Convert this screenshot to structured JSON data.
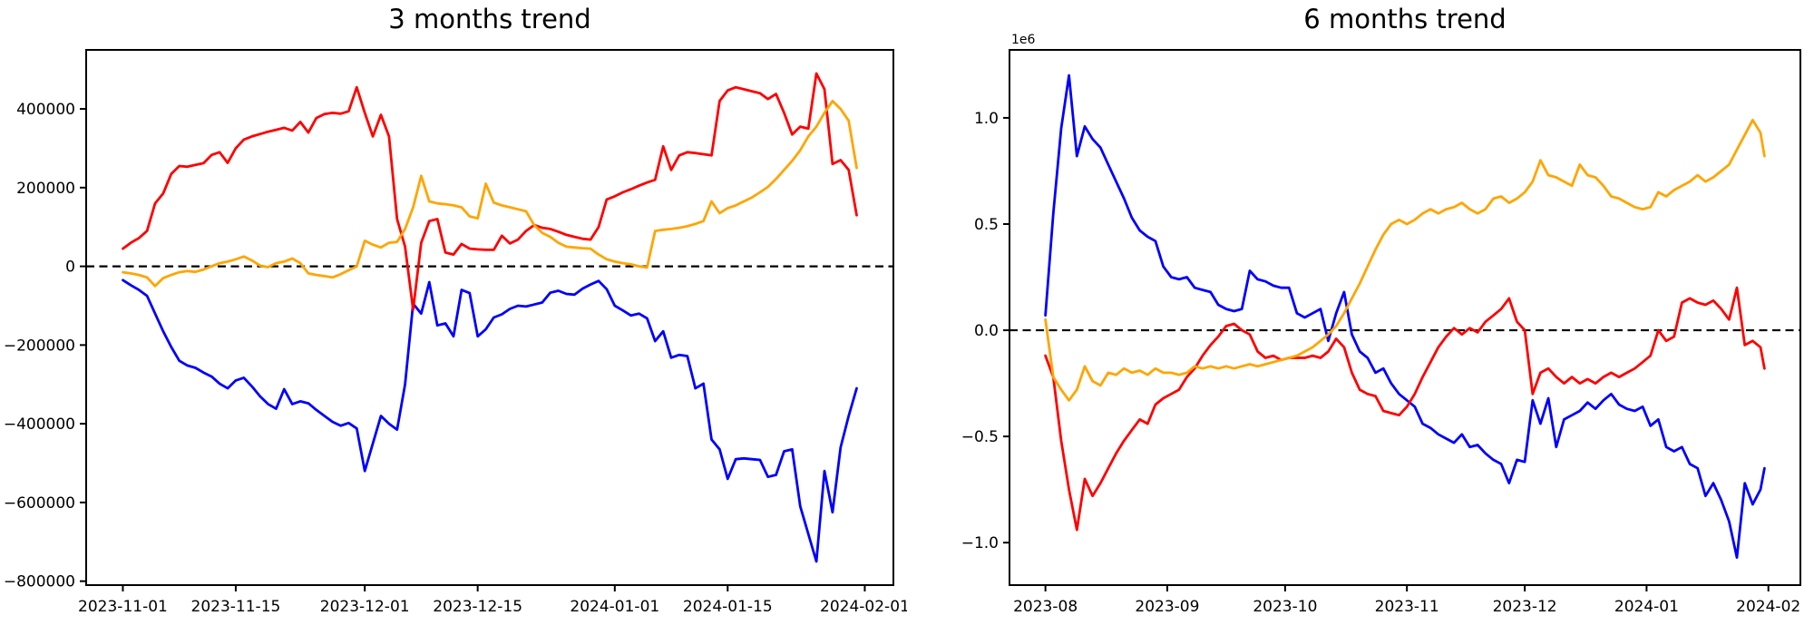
{
  "figure": {
    "background": "#ffffff",
    "zero_line_color": "#000000"
  },
  "chart_data": [
    {
      "type": "line",
      "title": "3 months trend",
      "xlabel": "",
      "ylabel": "",
      "grid": false,
      "legend": "none",
      "zero_line": true,
      "ylim": [
        -810000,
        550000
      ],
      "y_ticks": [
        {
          "value": 400000,
          "label": "400000"
        },
        {
          "value": 200000,
          "label": "200000"
        },
        {
          "value": 0,
          "label": "0"
        },
        {
          "value": -200000,
          "label": "−200000"
        },
        {
          "value": -400000,
          "label": "−400000"
        },
        {
          "value": -600000,
          "label": "−600000"
        },
        {
          "value": -800000,
          "label": "−800000"
        }
      ],
      "x_ticks": [
        {
          "date": "2023-11-01",
          "label": "2023-11-01"
        },
        {
          "date": "2023-11-15",
          "label": "2023-11-15"
        },
        {
          "date": "2023-12-01",
          "label": "2023-12-01"
        },
        {
          "date": "2023-12-15",
          "label": "2023-12-15"
        },
        {
          "date": "2024-01-01",
          "label": "2024-01-01"
        },
        {
          "date": "2024-01-15",
          "label": "2024-01-15"
        },
        {
          "date": "2024-02-01",
          "label": "2024-02-01"
        }
      ],
      "x_dates": [
        "2023-11-01",
        "2023-11-02",
        "2023-11-03",
        "2023-11-04",
        "2023-11-05",
        "2023-11-06",
        "2023-11-07",
        "2023-11-08",
        "2023-11-09",
        "2023-11-10",
        "2023-11-11",
        "2023-11-12",
        "2023-11-13",
        "2023-11-14",
        "2023-11-15",
        "2023-11-16",
        "2023-11-17",
        "2023-11-18",
        "2023-11-19",
        "2023-11-20",
        "2023-11-21",
        "2023-11-22",
        "2023-11-23",
        "2023-11-24",
        "2023-11-25",
        "2023-11-26",
        "2023-11-27",
        "2023-11-28",
        "2023-11-29",
        "2023-11-30",
        "2023-12-01",
        "2023-12-02",
        "2023-12-03",
        "2023-12-04",
        "2023-12-05",
        "2023-12-06",
        "2023-12-07",
        "2023-12-08",
        "2023-12-09",
        "2023-12-10",
        "2023-12-11",
        "2023-12-12",
        "2023-12-13",
        "2023-12-14",
        "2023-12-15",
        "2023-12-16",
        "2023-12-17",
        "2023-12-18",
        "2023-12-19",
        "2023-12-20",
        "2023-12-21",
        "2023-12-22",
        "2023-12-23",
        "2023-12-24",
        "2023-12-25",
        "2023-12-26",
        "2023-12-27",
        "2023-12-28",
        "2023-12-29",
        "2023-12-30",
        "2023-12-31",
        "2024-01-01",
        "2024-01-02",
        "2024-01-03",
        "2024-01-04",
        "2024-01-05",
        "2024-01-06",
        "2024-01-07",
        "2024-01-08",
        "2024-01-09",
        "2024-01-10",
        "2024-01-11",
        "2024-01-12",
        "2024-01-13",
        "2024-01-14",
        "2024-01-15",
        "2024-01-16",
        "2024-01-17",
        "2024-01-18",
        "2024-01-19",
        "2024-01-20",
        "2024-01-21",
        "2024-01-22",
        "2024-01-23",
        "2024-01-24",
        "2024-01-25",
        "2024-01-26",
        "2024-01-27",
        "2024-01-28",
        "2024-01-29",
        "2024-01-30",
        "2024-01-31"
      ],
      "series": [
        {
          "name": "blue-series",
          "color": "#0000ff",
          "values": [
            -35000,
            -48000,
            -60000,
            -75000,
            -120000,
            -165000,
            -205000,
            -240000,
            -252000,
            -258000,
            -270000,
            -280000,
            -298000,
            -310000,
            -290000,
            -283000,
            -305000,
            -330000,
            -350000,
            -362000,
            -312000,
            -350000,
            -343000,
            -348000,
            -365000,
            -380000,
            -395000,
            -405000,
            -398000,
            -412000,
            -520000,
            -450000,
            -380000,
            -400000,
            -415000,
            -300000,
            -95000,
            -120000,
            -40000,
            -150000,
            -145000,
            -178000,
            -60000,
            -68000,
            -178000,
            -160000,
            -130000,
            -122000,
            -108000,
            -100000,
            -102000,
            -97000,
            -92000,
            -67000,
            -62000,
            -70000,
            -72000,
            -57000,
            -46000,
            -37000,
            -58000,
            -100000,
            -112000,
            -125000,
            -120000,
            -132000,
            -190000,
            -165000,
            -232000,
            -225000,
            -228000,
            -310000,
            -298000,
            -440000,
            -465000,
            -540000,
            -490000,
            -488000,
            -490000,
            -492000,
            -535000,
            -530000,
            -470000,
            -465000,
            -610000,
            -680000,
            -750000,
            -520000,
            -625000,
            -460000,
            -380000,
            -310000
          ]
        },
        {
          "name": "red-series",
          "color": "#ff0000",
          "values": [
            45000,
            60000,
            72000,
            90000,
            160000,
            185000,
            235000,
            255000,
            253000,
            258000,
            262000,
            283000,
            290000,
            263000,
            300000,
            322000,
            330000,
            336000,
            342000,
            347000,
            352000,
            345000,
            367000,
            340000,
            377000,
            387000,
            390000,
            388000,
            394000,
            455000,
            390000,
            330000,
            385000,
            330000,
            120000,
            50000,
            -110000,
            60000,
            115000,
            120000,
            35000,
            30000,
            57000,
            45000,
            43000,
            42000,
            42000,
            78000,
            58000,
            68000,
            90000,
            105000,
            98000,
            95000,
            88000,
            80000,
            75000,
            70000,
            68000,
            100000,
            170000,
            178000,
            188000,
            196000,
            205000,
            213000,
            220000,
            305000,
            245000,
            282000,
            290000,
            288000,
            285000,
            282000,
            420000,
            447000,
            455000,
            450000,
            445000,
            440000,
            425000,
            438000,
            390000,
            335000,
            355000,
            350000,
            490000,
            450000,
            260000,
            270000,
            245000,
            130000
          ]
        },
        {
          "name": "orange-series",
          "color": "#ffa500",
          "values": [
            -15000,
            -18000,
            -22000,
            -28000,
            -50000,
            -30000,
            -22000,
            -15000,
            -12000,
            -14000,
            -8000,
            0,
            8000,
            12000,
            18000,
            25000,
            15000,
            2000,
            -2000,
            8000,
            12000,
            20000,
            8000,
            -18000,
            -22000,
            -25000,
            -28000,
            -20000,
            -10000,
            0,
            65000,
            55000,
            48000,
            60000,
            62000,
            95000,
            150000,
            230000,
            165000,
            160000,
            158000,
            155000,
            150000,
            127000,
            122000,
            210000,
            162000,
            155000,
            150000,
            145000,
            140000,
            105000,
            85000,
            75000,
            60000,
            50000,
            48000,
            46000,
            45000,
            30000,
            18000,
            12000,
            8000,
            5000,
            0,
            -3000,
            90000,
            93000,
            95000,
            98000,
            102000,
            108000,
            115000,
            165000,
            135000,
            148000,
            155000,
            165000,
            175000,
            188000,
            202000,
            222000,
            245000,
            268000,
            295000,
            330000,
            355000,
            390000,
            420000,
            400000,
            370000,
            250000
          ]
        }
      ]
    },
    {
      "type": "line",
      "title": "6 months trend",
      "xlabel": "",
      "ylabel": "",
      "grid": false,
      "legend": "none",
      "zero_line": true,
      "offset_label": "1e6",
      "ylim": [
        -1200000,
        1320000
      ],
      "y_ticks": [
        {
          "value": 1000000,
          "label": "1.0"
        },
        {
          "value": 500000,
          "label": "0.5"
        },
        {
          "value": 0,
          "label": "0.0"
        },
        {
          "value": -500000,
          "label": "−0.5"
        },
        {
          "value": -1000000,
          "label": "−1.0"
        }
      ],
      "x_ticks": [
        {
          "date": "2023-08-01",
          "label": "2023-08"
        },
        {
          "date": "2023-09-01",
          "label": "2023-09"
        },
        {
          "date": "2023-10-01",
          "label": "2023-10"
        },
        {
          "date": "2023-11-01",
          "label": "2023-11"
        },
        {
          "date": "2023-12-01",
          "label": "2023-12"
        },
        {
          "date": "2024-01-01",
          "label": "2024-01"
        },
        {
          "date": "2024-02-01",
          "label": "2024-02"
        }
      ],
      "x_dates": [
        "2023-08-01",
        "2023-08-03",
        "2023-08-05",
        "2023-08-07",
        "2023-08-09",
        "2023-08-11",
        "2023-08-13",
        "2023-08-15",
        "2023-08-17",
        "2023-08-19",
        "2023-08-21",
        "2023-08-23",
        "2023-08-25",
        "2023-08-27",
        "2023-08-29",
        "2023-08-31",
        "2023-09-02",
        "2023-09-04",
        "2023-09-06",
        "2023-09-08",
        "2023-09-10",
        "2023-09-12",
        "2023-09-14",
        "2023-09-16",
        "2023-09-18",
        "2023-09-20",
        "2023-09-22",
        "2023-09-24",
        "2023-09-26",
        "2023-09-28",
        "2023-09-30",
        "2023-10-02",
        "2023-10-04",
        "2023-10-06",
        "2023-10-08",
        "2023-10-10",
        "2023-10-12",
        "2023-10-14",
        "2023-10-16",
        "2023-10-18",
        "2023-10-20",
        "2023-10-22",
        "2023-10-24",
        "2023-10-26",
        "2023-10-28",
        "2023-10-30",
        "2023-11-01",
        "2023-11-03",
        "2023-11-05",
        "2023-11-07",
        "2023-11-09",
        "2023-11-11",
        "2023-11-13",
        "2023-11-15",
        "2023-11-17",
        "2023-11-19",
        "2023-11-21",
        "2023-11-23",
        "2023-11-25",
        "2023-11-27",
        "2023-11-29",
        "2023-12-01",
        "2023-12-03",
        "2023-12-05",
        "2023-12-07",
        "2023-12-09",
        "2023-12-11",
        "2023-12-13",
        "2023-12-15",
        "2023-12-17",
        "2023-12-19",
        "2023-12-21",
        "2023-12-23",
        "2023-12-25",
        "2023-12-27",
        "2023-12-29",
        "2023-12-31",
        "2024-01-02",
        "2024-01-04",
        "2024-01-06",
        "2024-01-08",
        "2024-01-10",
        "2024-01-12",
        "2024-01-14",
        "2024-01-16",
        "2024-01-18",
        "2024-01-20",
        "2024-01-22",
        "2024-01-24",
        "2024-01-26",
        "2024-01-28",
        "2024-01-30",
        "2024-01-31"
      ],
      "series": [
        {
          "name": "blue-series",
          "color": "#0000ff",
          "values": [
            70000,
            550000,
            950000,
            1200000,
            820000,
            960000,
            900000,
            860000,
            780000,
            700000,
            620000,
            530000,
            470000,
            440000,
            420000,
            300000,
            250000,
            240000,
            250000,
            200000,
            190000,
            180000,
            120000,
            100000,
            90000,
            100000,
            280000,
            240000,
            230000,
            210000,
            200000,
            200000,
            80000,
            60000,
            80000,
            100000,
            -50000,
            80000,
            180000,
            -20000,
            -100000,
            -130000,
            -200000,
            -180000,
            -250000,
            -300000,
            -330000,
            -360000,
            -440000,
            -460000,
            -490000,
            -510000,
            -530000,
            -490000,
            -550000,
            -540000,
            -580000,
            -610000,
            -630000,
            -720000,
            -610000,
            -620000,
            -330000,
            -440000,
            -320000,
            -550000,
            -420000,
            -400000,
            -380000,
            -340000,
            -370000,
            -330000,
            -300000,
            -350000,
            -370000,
            -380000,
            -360000,
            -450000,
            -420000,
            -550000,
            -570000,
            -550000,
            -630000,
            -650000,
            -780000,
            -720000,
            -800000,
            -900000,
            -1070000,
            -720000,
            -820000,
            -750000,
            -650000
          ]
        },
        {
          "name": "red-series",
          "color": "#ff0000",
          "values": [
            -120000,
            -220000,
            -520000,
            -750000,
            -940000,
            -700000,
            -780000,
            -720000,
            -650000,
            -580000,
            -520000,
            -470000,
            -420000,
            -440000,
            -350000,
            -320000,
            -300000,
            -280000,
            -220000,
            -180000,
            -120000,
            -70000,
            -30000,
            20000,
            30000,
            0,
            -20000,
            -100000,
            -130000,
            -120000,
            -140000,
            -130000,
            -130000,
            -130000,
            -120000,
            -130000,
            -100000,
            -40000,
            -80000,
            -200000,
            -280000,
            -300000,
            -310000,
            -380000,
            -390000,
            -400000,
            -360000,
            -300000,
            -220000,
            -150000,
            -80000,
            -30000,
            10000,
            -20000,
            10000,
            -10000,
            40000,
            70000,
            100000,
            150000,
            40000,
            0,
            -300000,
            -200000,
            -180000,
            -220000,
            -250000,
            -220000,
            -250000,
            -230000,
            -250000,
            -220000,
            -200000,
            -220000,
            -200000,
            -180000,
            -150000,
            -120000,
            0,
            -50000,
            -30000,
            130000,
            150000,
            130000,
            120000,
            140000,
            100000,
            50000,
            200000,
            -70000,
            -50000,
            -80000,
            -180000
          ]
        },
        {
          "name": "orange-series",
          "color": "#ffa500",
          "values": [
            50000,
            -220000,
            -280000,
            -330000,
            -280000,
            -170000,
            -240000,
            -260000,
            -200000,
            -210000,
            -180000,
            -200000,
            -190000,
            -210000,
            -180000,
            -200000,
            -200000,
            -210000,
            -200000,
            -170000,
            -180000,
            -170000,
            -180000,
            -170000,
            -180000,
            -170000,
            -160000,
            -170000,
            -160000,
            -150000,
            -140000,
            -130000,
            -120000,
            -100000,
            -80000,
            -50000,
            -20000,
            20000,
            80000,
            150000,
            220000,
            300000,
            380000,
            450000,
            500000,
            520000,
            500000,
            520000,
            550000,
            570000,
            550000,
            570000,
            580000,
            600000,
            570000,
            550000,
            570000,
            620000,
            630000,
            600000,
            620000,
            650000,
            700000,
            800000,
            730000,
            720000,
            700000,
            680000,
            780000,
            730000,
            720000,
            680000,
            630000,
            620000,
            600000,
            580000,
            570000,
            580000,
            650000,
            630000,
            660000,
            680000,
            700000,
            730000,
            700000,
            720000,
            750000,
            780000,
            850000,
            920000,
            990000,
            930000,
            820000
          ]
        }
      ]
    }
  ]
}
